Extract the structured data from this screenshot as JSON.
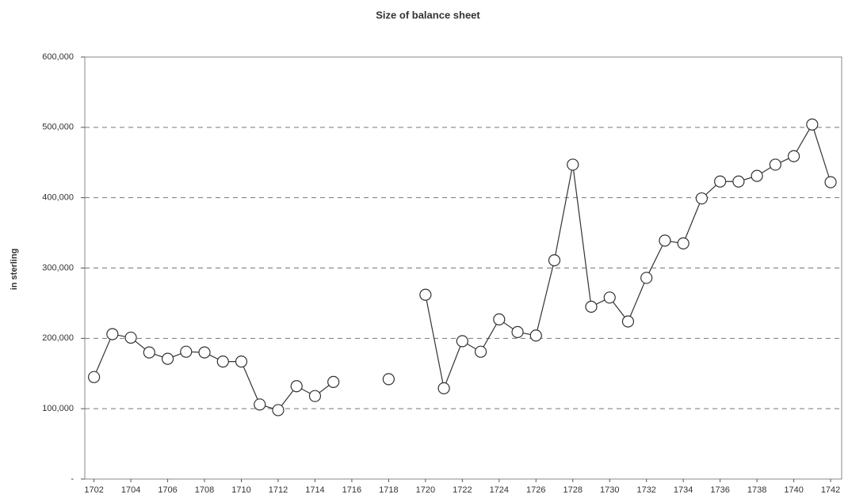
{
  "chart_data": {
    "type": "line",
    "title": "Size of balance sheet",
    "y_label": "in sterling",
    "x": [
      1702,
      1703,
      1704,
      1705,
      1706,
      1707,
      1708,
      1709,
      1710,
      1711,
      1712,
      1713,
      1714,
      1715,
      1716,
      1717,
      1718,
      1719,
      1720,
      1721,
      1722,
      1723,
      1724,
      1725,
      1726,
      1727,
      1728,
      1729,
      1730,
      1731,
      1732,
      1733,
      1734,
      1735,
      1736,
      1737,
      1738,
      1739,
      1740,
      1741,
      1742
    ],
    "series": [
      {
        "name": "Size of balance sheet",
        "color": "#333333",
        "values": [
          145000,
          206000,
          201000,
          180000,
          171000,
          181000,
          180000,
          167000,
          167000,
          106000,
          98000,
          132000,
          118000,
          138000,
          null,
          null,
          142000,
          null,
          262000,
          129000,
          196000,
          181000,
          227000,
          209000,
          204000,
          311000,
          447000,
          245000,
          258000,
          224000,
          286000,
          339000,
          335000,
          399000,
          423000,
          423000,
          431000,
          447000,
          459000,
          504000,
          422000
        ]
      }
    ],
    "xlim": [
      1701.5,
      1742.6
    ],
    "xticks": [
      1702,
      1704,
      1706,
      1708,
      1710,
      1712,
      1714,
      1716,
      1718,
      1720,
      1722,
      1724,
      1726,
      1728,
      1730,
      1732,
      1734,
      1736,
      1738,
      1740,
      1742
    ],
    "ylim": [
      0,
      600000
    ],
    "yticks": [
      {
        "value": 0,
        "label": "-"
      },
      {
        "value": 100000,
        "label": "100,000"
      },
      {
        "value": 200000,
        "label": "200,000"
      },
      {
        "value": 300000,
        "label": "300,000"
      },
      {
        "value": 400000,
        "label": "400,000"
      },
      {
        "value": 500000,
        "label": "500,000"
      },
      {
        "value": 600000,
        "label": "600,000"
      }
    ],
    "grid": true
  }
}
